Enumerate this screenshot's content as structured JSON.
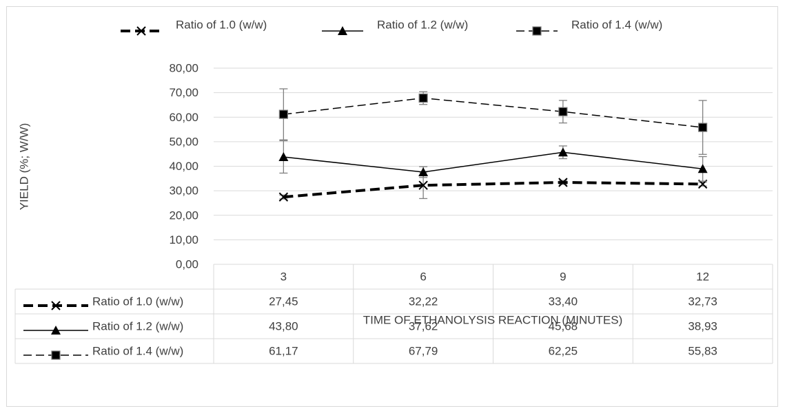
{
  "chart_data": {
    "type": "line",
    "categories": [
      "3",
      "6",
      "9",
      "12"
    ],
    "series": [
      {
        "name": "Ratio of 1.0 (w/w)",
        "values": [
          27.45,
          32.22,
          33.4,
          32.73
        ],
        "labels": [
          "27,45",
          "32,22",
          "33,40",
          "32,73"
        ],
        "error": [
          0.8,
          5.4,
          0.8,
          0.8
        ],
        "marker": "x",
        "dash": "thick-dash"
      },
      {
        "name": "Ratio of 1.2 (w/w)",
        "values": [
          43.8,
          37.62,
          45.68,
          38.93
        ],
        "labels": [
          "43,80",
          "37,62",
          "45,68",
          "38,93"
        ],
        "error": [
          6.6,
          2.2,
          2.6,
          5.0
        ],
        "marker": "triangle",
        "dash": "solid"
      },
      {
        "name": "Ratio of 1.4 (w/w)",
        "values": [
          61.17,
          67.79,
          62.25,
          55.83
        ],
        "labels": [
          "61,17",
          "67,79",
          "62,25",
          "55,83"
        ],
        "error": [
          10.4,
          2.6,
          4.6,
          11.0
        ],
        "marker": "square",
        "dash": "dashed"
      }
    ],
    "ylabel": "YIELD (%; W/W)",
    "xlabel": "TIME OF ETHANOLYSIS REACTION (MINUTES)",
    "ylim": [
      0,
      80
    ],
    "yticks": [
      "0,00",
      "10,00",
      "20,00",
      "30,00",
      "40,00",
      "50,00",
      "60,00",
      "70,00",
      "80,00"
    ],
    "grid": true,
    "legend": "top",
    "data_table": true
  },
  "colors": {
    "line": "#000000",
    "grid": "#d9d9d9",
    "text": "#404040",
    "errorbar": "#7f7f7f"
  }
}
